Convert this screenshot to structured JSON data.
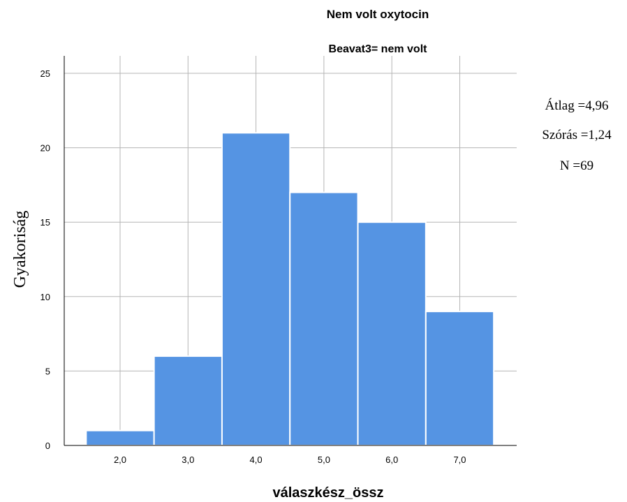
{
  "chart_data": {
    "type": "bar",
    "title": "Nem volt oxytocin",
    "subtitle": "Beavat3= nem volt",
    "xlabel": "válaszkész_össz",
    "ylabel": "Gyakoriság",
    "categories": [
      "2,0",
      "3,0",
      "4,0",
      "5,0",
      "6,0",
      "7,0"
    ],
    "values": [
      1,
      6,
      21,
      17,
      15,
      9
    ],
    "ylim": [
      0,
      25
    ],
    "yticks": [
      0,
      5,
      10,
      15,
      20,
      25
    ],
    "grid": true,
    "bar_color": "#5594e3",
    "stats": [
      "Átlag =4,96",
      "Szórás =1,24",
      "N =69"
    ]
  }
}
